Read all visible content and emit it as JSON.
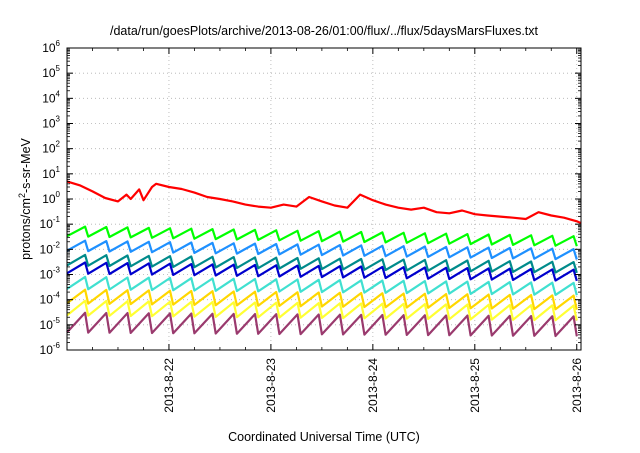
{
  "chart_data": {
    "type": "line",
    "title": "/data/run/goesPlots/archive/2013-08-26/01:00/flux/../flux/5daysMarsFluxes.txt",
    "xlabel": "Coordinated Universal Time (UTC)",
    "ylabel": {
      "prefix": "protons/cm",
      "sup": "2",
      "suffix": "-s-sr-MeV"
    },
    "y_scale": "log",
    "ylim": [
      1e-06,
      1000000.0
    ],
    "xlim": [
      "2013-08-21T00:00",
      "2013-08-26T01:00"
    ],
    "grid": true,
    "legend": "none",
    "y_ticks": [
      {
        "value": 1000000.0,
        "base": "10",
        "exp": "6"
      },
      {
        "value": 100000.0,
        "base": "10",
        "exp": "5"
      },
      {
        "value": 10000.0,
        "base": "10",
        "exp": "4"
      },
      {
        "value": 1000.0,
        "base": "10",
        "exp": "3"
      },
      {
        "value": 100.0,
        "base": "10",
        "exp": "2"
      },
      {
        "value": 10.0,
        "base": "10",
        "exp": "1"
      },
      {
        "value": 1.0,
        "base": "10",
        "exp": "0"
      },
      {
        "value": 0.1,
        "base": "10",
        "exp": "-1"
      },
      {
        "value": 0.01,
        "base": "10",
        "exp": "-2"
      },
      {
        "value": 0.001,
        "base": "10",
        "exp": "-3"
      },
      {
        "value": 0.0001,
        "base": "10",
        "exp": "-4"
      },
      {
        "value": 1e-05,
        "base": "10",
        "exp": "-5"
      },
      {
        "value": 1e-06,
        "base": "10",
        "exp": "-6"
      }
    ],
    "x_ticks": [
      {
        "value": "2013-08-22T00:00",
        "label": "2013-8-22"
      },
      {
        "value": "2013-08-23T00:00",
        "label": "2013-8-23"
      },
      {
        "value": "2013-08-24T00:00",
        "label": "2013-8-24"
      },
      {
        "value": "2013-08-25T00:00",
        "label": "2013-8-25"
      },
      {
        "value": "2013-08-26T00:00",
        "label": "2013-8-26"
      }
    ],
    "series": [
      {
        "color": "#ff0000",
        "x": [
          "2013-08-21T00:00",
          "2013-08-21T03:00",
          "2013-08-21T06:00",
          "2013-08-21T09:00",
          "2013-08-21T12:00",
          "2013-08-21T14:00",
          "2013-08-21T15:00",
          "2013-08-21T17:00",
          "2013-08-21T18:00",
          "2013-08-21T20:00",
          "2013-08-21T21:00",
          "2013-08-22T00:00",
          "2013-08-22T03:00",
          "2013-08-22T06:00",
          "2013-08-22T09:00",
          "2013-08-22T12:00",
          "2013-08-22T15:00",
          "2013-08-22T18:00",
          "2013-08-22T21:00",
          "2013-08-23T00:00",
          "2013-08-23T03:00",
          "2013-08-23T06:00",
          "2013-08-23T09:00",
          "2013-08-23T12:00",
          "2013-08-23T15:00",
          "2013-08-23T18:00",
          "2013-08-23T21:00",
          "2013-08-24T00:00",
          "2013-08-24T03:00",
          "2013-08-24T06:00",
          "2013-08-24T09:00",
          "2013-08-24T12:00",
          "2013-08-24T15:00",
          "2013-08-24T18:00",
          "2013-08-24T21:00",
          "2013-08-25T00:00",
          "2013-08-25T03:00",
          "2013-08-25T06:00",
          "2013-08-25T09:00",
          "2013-08-25T12:00",
          "2013-08-25T15:00",
          "2013-08-25T18:00",
          "2013-08-25T21:00",
          "2013-08-26T00:00",
          "2013-08-26T01:00"
        ],
        "values": [
          5,
          3.5,
          2,
          1.1,
          0.8,
          1.5,
          1.0,
          2.4,
          0.9,
          3.0,
          4,
          3,
          2.5,
          1.8,
          1.2,
          1.0,
          0.8,
          0.6,
          0.5,
          0.45,
          0.6,
          0.5,
          1.2,
          0.8,
          0.55,
          0.45,
          1.5,
          0.9,
          0.6,
          0.45,
          0.38,
          0.45,
          0.3,
          0.27,
          0.35,
          0.25,
          0.22,
          0.2,
          0.18,
          0.16,
          0.3,
          0.22,
          0.18,
          0.13,
          0.11
        ]
      },
      {
        "color": "#00ff00",
        "base": 0.08,
        "trend": -0.8,
        "amp": 2.4
      },
      {
        "color": "#1e90ff",
        "base": 0.022,
        "trend": -0.7,
        "amp": 2.5
      },
      {
        "color": "#008b8b",
        "base": 0.006,
        "trend": -0.6,
        "amp": 2.6
      },
      {
        "color": "#0000cd",
        "base": 0.003,
        "trend": -0.6,
        "amp": 2.7
      },
      {
        "color": "#40e0d0",
        "base": 0.0008,
        "trend": -0.5,
        "amp": 3.0
      },
      {
        "color": "#ffd700",
        "base": 0.00025,
        "trend": -0.5,
        "amp": 3.5
      },
      {
        "color": "#ffff33",
        "base": 9e-05,
        "trend": -0.4,
        "amp": 3.8
      },
      {
        "color": "#9a3a6e",
        "base": 3e-05,
        "trend": -0.3,
        "amp": 6.0
      }
    ]
  }
}
